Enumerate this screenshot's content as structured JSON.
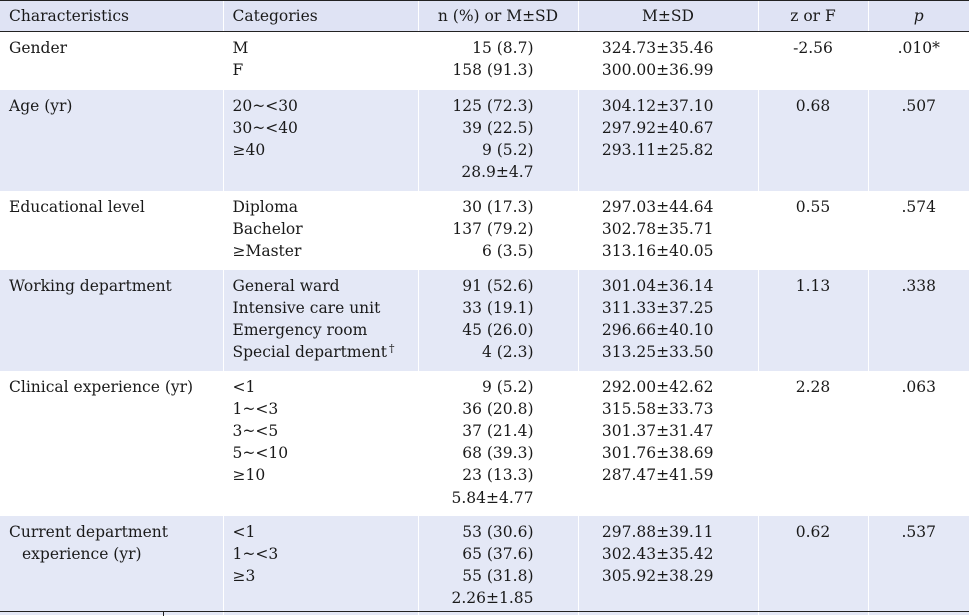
{
  "headers": [
    "Characteristics",
    "Categories",
    "n (%) or M±SD",
    "M±SD",
    "z or F",
    "p"
  ],
  "rows": [
    {
      "characteristic": [
        "Gender"
      ],
      "categories": [
        "M",
        "F"
      ],
      "n": [
        "15 (8.7)",
        "158 (91.3)"
      ],
      "msd": [
        "324.73±35.46",
        "300.00±36.99"
      ],
      "zf": "-2.56",
      "p": ".010*"
    },
    {
      "characteristic": [
        "Age (yr)"
      ],
      "categories": [
        "20~<30",
        "30~<40",
        "≥40"
      ],
      "n": [
        "125 (72.3)",
        "39 (22.5)",
        "9 (5.2)",
        "28.9±4.7"
      ],
      "msd": [
        "304.12±37.10",
        "297.92±40.67",
        "293.11±25.82"
      ],
      "zf": "0.68",
      "p": ".507"
    },
    {
      "characteristic": [
        "Educational level"
      ],
      "categories": [
        "Diploma",
        "Bachelor",
        "≥Master"
      ],
      "n": [
        "30 (17.3)",
        "137 (79.2)",
        "6 (3.5)"
      ],
      "msd": [
        "297.03±44.64",
        "302.78±35.71",
        "313.16±40.05"
      ],
      "zf": "0.55",
      "p": ".574"
    },
    {
      "characteristic": [
        "Working department"
      ],
      "categories": [
        "General ward",
        "Intensive care unit",
        "Emergency room",
        "Special department"
      ],
      "dagger": "†",
      "n": [
        "91 (52.6)",
        "33 (19.1)",
        "45 (26.0)",
        "4 (2.3)"
      ],
      "msd": [
        "301.04±36.14",
        "311.33±37.25",
        "296.66±40.10",
        "313.25±33.50"
      ],
      "zf": "1.13",
      "p": ".338"
    },
    {
      "characteristic": [
        "Clinical experience (yr)"
      ],
      "categories": [
        "<1",
        "1~<3",
        "3~<5",
        "5~<10",
        "≥10"
      ],
      "n": [
        "9 (5.2)",
        "36 (20.8)",
        "37 (21.4)",
        "68 (39.3)",
        "23 (13.3)",
        "5.84±4.77"
      ],
      "msd": [
        "292.00±42.62",
        "315.58±33.73",
        "301.37±31.47",
        "301.76±38.69",
        "287.47±41.59"
      ],
      "zf": "2.28",
      "p": ".063"
    },
    {
      "characteristic": [
        "Current department",
        "experience (yr)"
      ],
      "categories": [
        "<1",
        "1~<3",
        "≥3"
      ],
      "n": [
        "53 (30.6)",
        "65 (37.6)",
        "55 (31.8)",
        "2.26±1.85"
      ],
      "msd": [
        "297.88±39.11",
        "302.43±35.42",
        "305.92±38.29"
      ],
      "zf": "0.62",
      "p": ".537"
    }
  ]
}
